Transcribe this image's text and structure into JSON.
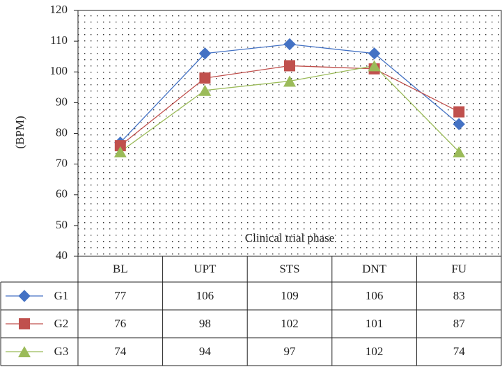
{
  "chart_data": {
    "type": "line",
    "x_label": "Clinical trial phase",
    "y_label": "(BPM)",
    "categories": [
      "BL",
      "UPT",
      "STS",
      "DNT",
      "FU"
    ],
    "series": [
      {
        "name": "G1",
        "color": "#4472c4",
        "marker": "diamond",
        "values": [
          77,
          106,
          109,
          106,
          83
        ]
      },
      {
        "name": "G2",
        "color": "#c0504d",
        "marker": "square",
        "values": [
          76,
          98,
          102,
          101,
          87
        ]
      },
      {
        "name": "G3",
        "color": "#9bbb59",
        "marker": "triangle",
        "values": [
          74,
          94,
          97,
          102,
          74
        ]
      }
    ],
    "ylim": [
      40,
      120
    ],
    "yticks": [
      40,
      50,
      60,
      70,
      80,
      90,
      100,
      110,
      120
    ],
    "grid": "dotted",
    "data_table": true
  }
}
